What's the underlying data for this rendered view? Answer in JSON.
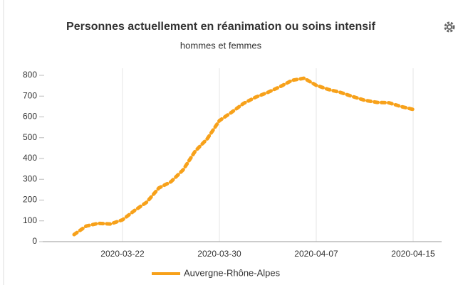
{
  "chart_data": {
    "type": "line",
    "title": "Personnes actuellement en réanimation ou soins intensif",
    "subtitle": "hommes et femmes",
    "categories": [
      null,
      null,
      null,
      null,
      "2020-03-22",
      null,
      null,
      null,
      null,
      null,
      null,
      null,
      "2020-03-30",
      null,
      null,
      null,
      null,
      null,
      null,
      null,
      "2020-04-07",
      null,
      null,
      null,
      null,
      null,
      null,
      null,
      "2020-04-15"
    ],
    "series": [
      {
        "name": "Auvergne-Rhône-Alpes",
        "color": "#f7a11a",
        "values": [
          34,
          75,
          88,
          85,
          105,
          150,
          190,
          258,
          288,
          345,
          435,
          495,
          582,
          622,
          665,
          695,
          718,
          745,
          776,
          786,
          752,
          732,
          718,
          698,
          680,
          670,
          668,
          650,
          636
        ]
      }
    ],
    "ylim": [
      0,
      800
    ],
    "yticks": [
      0,
      100,
      200,
      300,
      400,
      500,
      600,
      700,
      800
    ],
    "grid": true
  }
}
